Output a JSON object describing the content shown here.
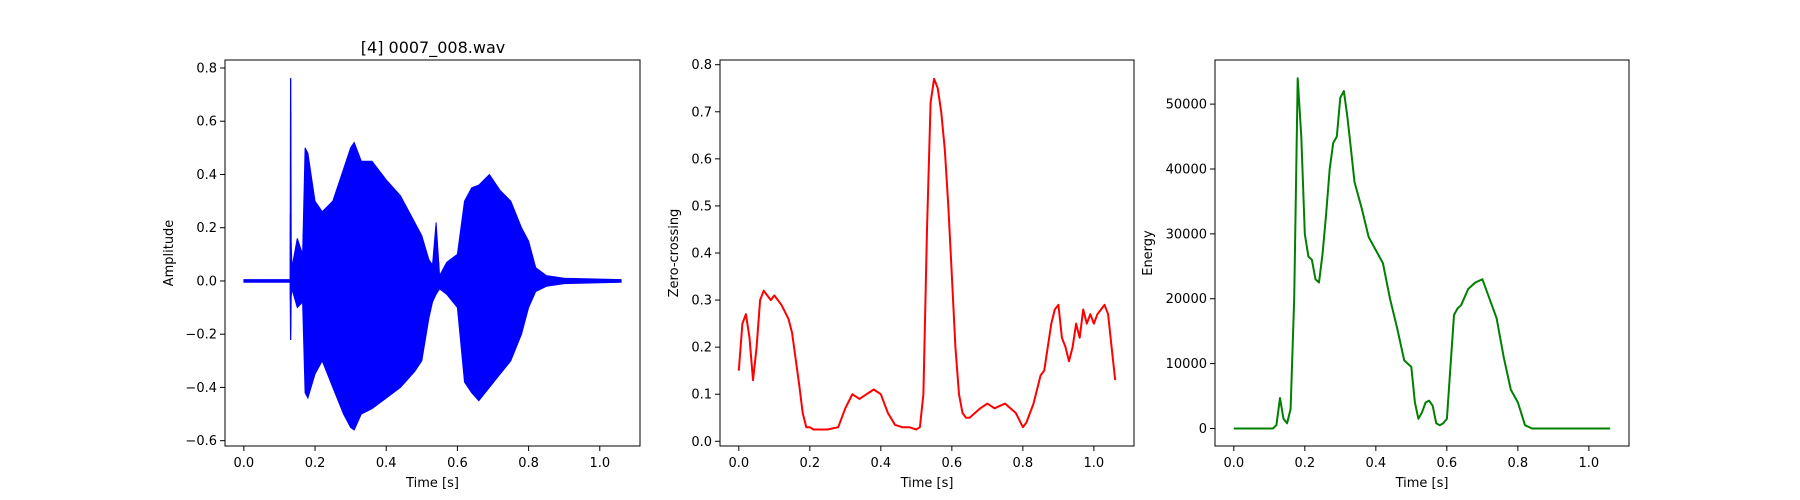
{
  "chart_data": [
    {
      "type": "line",
      "title": "[4] 0007_008.wav",
      "xlabel": "Time [s]",
      "ylabel": "Amplitude",
      "xlim": [
        -0.053,
        1.113
      ],
      "ylim": [
        -0.62,
        0.83
      ],
      "xticks": [
        0.0,
        0.2,
        0.4,
        0.6,
        0.8,
        1.0
      ],
      "xtick_labels": [
        "0.0",
        "0.2",
        "0.4",
        "0.6",
        "0.8",
        "1.0"
      ],
      "yticks": [
        -0.6,
        -0.4,
        -0.2,
        0.0,
        0.2,
        0.4,
        0.6,
        0.8
      ],
      "ytick_labels": [
        "−0.6",
        "−0.4",
        "−0.2",
        "0.0",
        "0.2",
        "0.4",
        "0.6",
        "0.8"
      ],
      "grid": false,
      "color": "#0000ff",
      "series": [
        {
          "style": "waveform",
          "x": [
            0.0,
            0.13,
            0.131,
            0.132,
            0.133,
            0.135,
            0.15,
            0.165,
            0.172,
            0.18,
            0.2,
            0.22,
            0.25,
            0.28,
            0.3,
            0.31,
            0.33,
            0.36,
            0.4,
            0.44,
            0.48,
            0.5,
            0.52,
            0.53,
            0.54,
            0.55,
            0.57,
            0.6,
            0.62,
            0.64,
            0.66,
            0.69,
            0.72,
            0.75,
            0.78,
            0.8,
            0.82,
            0.85,
            0.9,
            1.06
          ],
          "upper": [
            0.005,
            0.005,
            0.76,
            0.76,
            0.15,
            0.05,
            0.16,
            0.1,
            0.5,
            0.48,
            0.3,
            0.26,
            0.3,
            0.42,
            0.5,
            0.52,
            0.45,
            0.45,
            0.38,
            0.32,
            0.22,
            0.17,
            0.08,
            0.06,
            0.22,
            0.02,
            0.07,
            0.1,
            0.3,
            0.35,
            0.36,
            0.4,
            0.34,
            0.3,
            0.2,
            0.15,
            0.05,
            0.02,
            0.01,
            0.005
          ],
          "lower": [
            -0.005,
            -0.005,
            -0.22,
            -0.22,
            -0.06,
            -0.03,
            -0.1,
            -0.08,
            -0.42,
            -0.44,
            -0.35,
            -0.3,
            -0.4,
            -0.5,
            -0.55,
            -0.56,
            -0.5,
            -0.48,
            -0.44,
            -0.4,
            -0.34,
            -0.3,
            -0.14,
            -0.08,
            -0.05,
            -0.03,
            -0.05,
            -0.1,
            -0.38,
            -0.42,
            -0.45,
            -0.4,
            -0.35,
            -0.3,
            -0.2,
            -0.1,
            -0.04,
            -0.02,
            -0.01,
            -0.005
          ]
        }
      ]
    },
    {
      "type": "line",
      "title": "",
      "xlabel": "Time [s]",
      "ylabel": "Zero-crossing",
      "xlim": [
        -0.053,
        1.113
      ],
      "ylim": [
        -0.01,
        0.81
      ],
      "xticks": [
        0.0,
        0.2,
        0.4,
        0.6,
        0.8,
        1.0
      ],
      "xtick_labels": [
        "0.0",
        "0.2",
        "0.4",
        "0.6",
        "0.8",
        "1.0"
      ],
      "yticks": [
        0.0,
        0.1,
        0.2,
        0.3,
        0.4,
        0.5,
        0.6,
        0.7,
        0.8
      ],
      "ytick_labels": [
        "0.0",
        "0.1",
        "0.2",
        "0.3",
        "0.4",
        "0.5",
        "0.6",
        "0.7",
        "0.8"
      ],
      "grid": false,
      "color": "#ff0000",
      "series": [
        {
          "x": [
            0.0,
            0.01,
            0.02,
            0.03,
            0.04,
            0.05,
            0.06,
            0.07,
            0.08,
            0.09,
            0.1,
            0.12,
            0.14,
            0.15,
            0.17,
            0.18,
            0.19,
            0.2,
            0.21,
            0.25,
            0.28,
            0.3,
            0.32,
            0.34,
            0.36,
            0.38,
            0.4,
            0.42,
            0.44,
            0.46,
            0.48,
            0.5,
            0.51,
            0.52,
            0.53,
            0.54,
            0.55,
            0.56,
            0.57,
            0.58,
            0.59,
            0.6,
            0.61,
            0.62,
            0.63,
            0.64,
            0.65,
            0.68,
            0.7,
            0.72,
            0.75,
            0.78,
            0.8,
            0.81,
            0.83,
            0.85,
            0.86,
            0.88,
            0.89,
            0.9,
            0.91,
            0.92,
            0.93,
            0.94,
            0.95,
            0.96,
            0.97,
            0.98,
            0.99,
            1.0,
            1.01,
            1.02,
            1.03,
            1.04,
            1.05,
            1.06
          ],
          "values": [
            0.15,
            0.25,
            0.27,
            0.22,
            0.13,
            0.2,
            0.3,
            0.32,
            0.31,
            0.3,
            0.31,
            0.29,
            0.26,
            0.23,
            0.12,
            0.06,
            0.03,
            0.03,
            0.025,
            0.025,
            0.03,
            0.07,
            0.1,
            0.09,
            0.1,
            0.11,
            0.1,
            0.06,
            0.035,
            0.03,
            0.03,
            0.025,
            0.03,
            0.1,
            0.45,
            0.72,
            0.77,
            0.75,
            0.7,
            0.62,
            0.5,
            0.35,
            0.2,
            0.1,
            0.06,
            0.05,
            0.05,
            0.07,
            0.08,
            0.07,
            0.08,
            0.06,
            0.03,
            0.04,
            0.08,
            0.14,
            0.15,
            0.25,
            0.28,
            0.29,
            0.22,
            0.2,
            0.17,
            0.2,
            0.25,
            0.22,
            0.28,
            0.25,
            0.27,
            0.25,
            0.27,
            0.28,
            0.29,
            0.27,
            0.2,
            0.13
          ]
        }
      ]
    },
    {
      "type": "line",
      "title": "",
      "xlabel": "Time [s]",
      "ylabel": "Energy",
      "xlim": [
        -0.053,
        1.113
      ],
      "ylim": [
        -2700,
        56800
      ],
      "xticks": [
        0.0,
        0.2,
        0.4,
        0.6,
        0.8,
        1.0
      ],
      "xtick_labels": [
        "0.0",
        "0.2",
        "0.4",
        "0.6",
        "0.8",
        "1.0"
      ],
      "yticks": [
        0,
        10000,
        20000,
        30000,
        40000,
        50000
      ],
      "ytick_labels": [
        "0",
        "10000",
        "20000",
        "30000",
        "40000",
        "50000"
      ],
      "grid": false,
      "color": "#008000",
      "series": [
        {
          "x": [
            0.0,
            0.11,
            0.12,
            0.13,
            0.14,
            0.15,
            0.16,
            0.17,
            0.18,
            0.19,
            0.2,
            0.21,
            0.22,
            0.23,
            0.24,
            0.25,
            0.26,
            0.27,
            0.28,
            0.29,
            0.3,
            0.31,
            0.32,
            0.33,
            0.34,
            0.36,
            0.38,
            0.4,
            0.42,
            0.44,
            0.46,
            0.48,
            0.5,
            0.51,
            0.52,
            0.53,
            0.54,
            0.55,
            0.56,
            0.57,
            0.58,
            0.59,
            0.6,
            0.62,
            0.63,
            0.64,
            0.66,
            0.68,
            0.7,
            0.72,
            0.74,
            0.76,
            0.78,
            0.8,
            0.82,
            0.84,
            0.9,
            1.06
          ],
          "values": [
            0,
            0,
            500,
            4700,
            1500,
            800,
            3000,
            20000,
            54000,
            45000,
            30000,
            26500,
            26000,
            23000,
            22500,
            27000,
            33000,
            40000,
            44000,
            45000,
            51000,
            52000,
            48000,
            43000,
            38000,
            34000,
            29500,
            27500,
            25500,
            20000,
            15500,
            10500,
            9500,
            4000,
            1500,
            2500,
            4000,
            4300,
            3500,
            800,
            500,
            800,
            1500,
            17500,
            18500,
            19000,
            21500,
            22500,
            23000,
            20000,
            17000,
            11000,
            6000,
            4000,
            500,
            0,
            0,
            0
          ]
        }
      ]
    }
  ]
}
